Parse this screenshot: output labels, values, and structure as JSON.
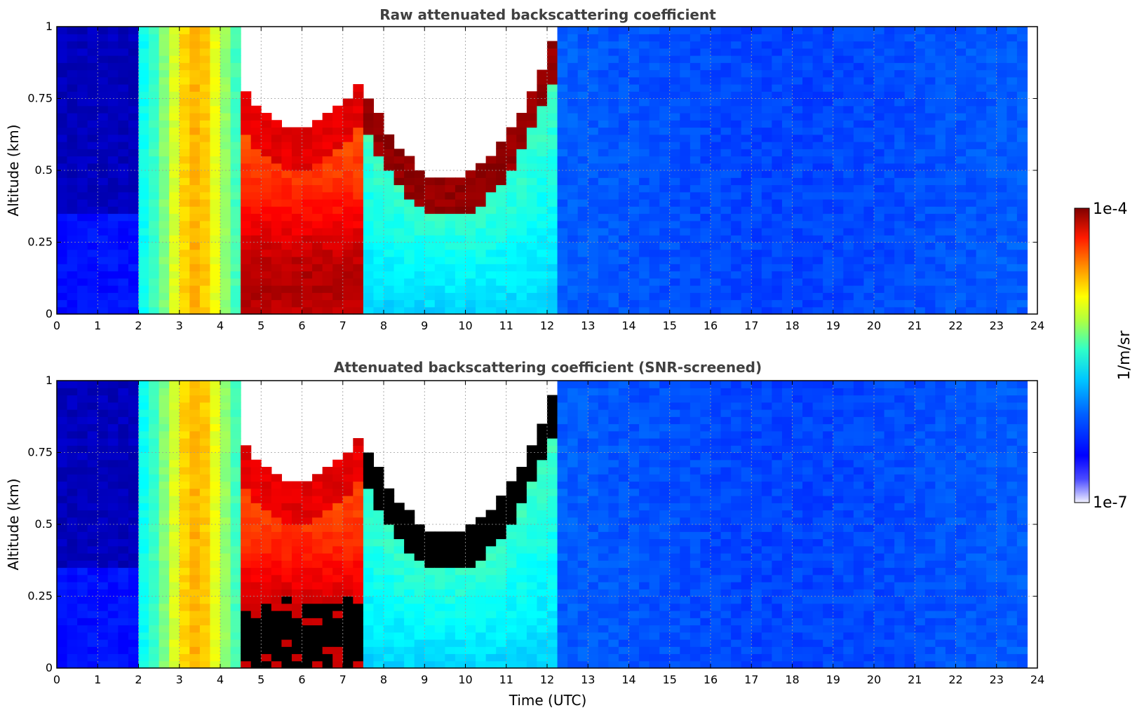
{
  "chart_data": [
    {
      "type": "heatmap",
      "title": "Raw attenuated backscattering coefficient",
      "xlabel": "",
      "ylabel": "Altitude (km)",
      "xlim": [
        0,
        24
      ],
      "ylim": [
        0,
        1
      ],
      "xticks": [
        "0",
        "1",
        "2",
        "3",
        "4",
        "5",
        "6",
        "7",
        "8",
        "9",
        "10",
        "11",
        "12",
        "13",
        "14",
        "15",
        "16",
        "17",
        "18",
        "19",
        "20",
        "21",
        "22",
        "23",
        "24"
      ],
      "yticks": [
        "0",
        "0.25",
        "0.5",
        "0.75",
        "1"
      ],
      "yticks_values": [
        0,
        0.25,
        0.5,
        0.75,
        1
      ],
      "grid": true,
      "screened": false
    },
    {
      "type": "heatmap",
      "title": "Attenuated backscattering coefficient (SNR-screened)",
      "xlabel": "Time (UTC)",
      "ylabel": "Altitude (km)",
      "xlim": [
        0,
        24
      ],
      "ylim": [
        0,
        1
      ],
      "xticks": [
        "0",
        "1",
        "2",
        "3",
        "4",
        "5",
        "6",
        "7",
        "8",
        "9",
        "10",
        "11",
        "12",
        "13",
        "14",
        "15",
        "16",
        "17",
        "18",
        "19",
        "20",
        "21",
        "22",
        "23",
        "24"
      ],
      "yticks": [
        "0",
        "0.25",
        "0.5",
        "0.75",
        "1"
      ],
      "yticks_values": [
        0,
        0.25,
        0.5,
        0.75,
        1
      ],
      "grid": true,
      "screened": true
    }
  ],
  "colorbar": {
    "max_label": "1e-4",
    "min_label": "1e-7",
    "unit_label": "1/m/sr",
    "scale": "log",
    "colormap": "jet"
  }
}
